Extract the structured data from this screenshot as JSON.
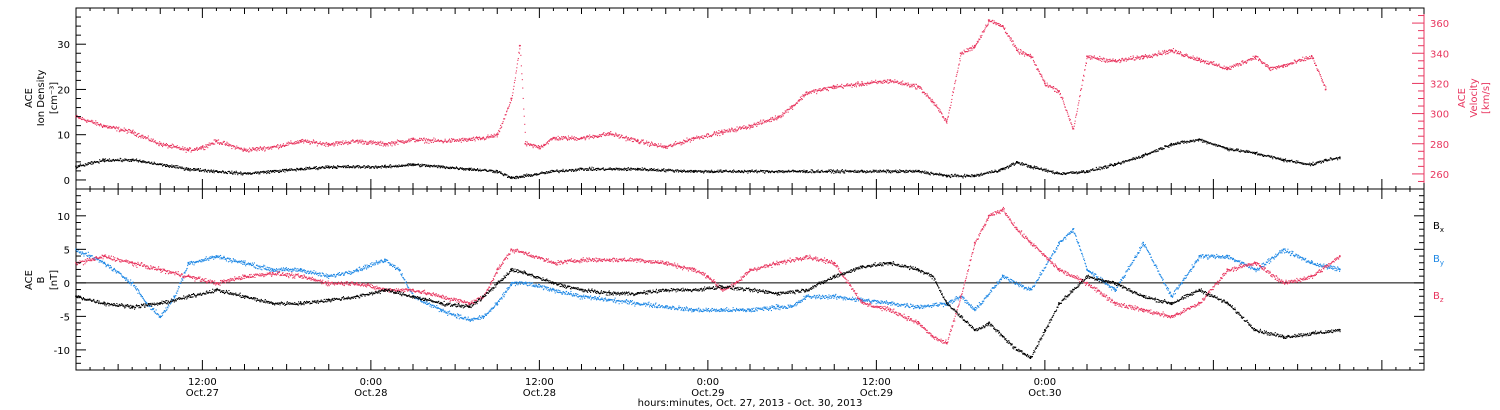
{
  "chart_data": [
    {
      "type": "scatter",
      "panel": "top",
      "ylabel_left": [
        "ACE",
        "Ion Density",
        "[cm⁻³]"
      ],
      "ylabel_right": [
        "ACE",
        "Velocity",
        "[km/s]"
      ],
      "x_range_hours": [
        0,
        96
      ],
      "ylim_left": [
        -2,
        38
      ],
      "yticks_left": [
        0,
        10,
        20,
        30
      ],
      "ylim_right": [
        250,
        370
      ],
      "yticks_right": [
        260,
        280,
        300,
        320,
        340,
        360
      ],
      "series": [
        {
          "axis": "left",
          "color": "#000000",
          "points": [
            [
              0,
              3.0
            ],
            [
              2,
              4.5
            ],
            [
              4,
              4.5
            ],
            [
              6,
              3.5
            ],
            [
              8,
              2.5
            ],
            [
              10,
              2.0
            ],
            [
              12,
              1.5
            ],
            [
              14,
              2.0
            ],
            [
              16,
              2.5
            ],
            [
              18,
              3.0
            ],
            [
              20,
              3.0
            ],
            [
              22,
              3.0
            ],
            [
              24,
              3.5
            ],
            [
              26,
              3.0
            ],
            [
              28,
              2.5
            ],
            [
              30,
              2.0
            ],
            [
              31,
              0.5
            ],
            [
              32,
              1.0
            ],
            [
              34,
              2.0
            ],
            [
              36,
              2.5
            ],
            [
              40,
              2.5
            ],
            [
              44,
              2.0
            ],
            [
              48,
              2.0
            ],
            [
              52,
              2.0
            ],
            [
              56,
              2.0
            ],
            [
              60,
              2.0
            ],
            [
              62,
              1.0
            ],
            [
              64,
              1.0
            ],
            [
              66,
              2.5
            ],
            [
              67,
              4.0
            ],
            [
              68,
              3.0
            ],
            [
              70,
              1.5
            ],
            [
              72,
              2.0
            ],
            [
              74,
              3.5
            ],
            [
              76,
              5.5
            ],
            [
              78,
              8.0
            ],
            [
              80,
              9.0
            ],
            [
              82,
              7.0
            ],
            [
              84,
              6.0
            ],
            [
              86,
              4.5
            ],
            [
              88,
              3.5
            ],
            [
              89,
              4.5
            ],
            [
              90,
              5.0
            ]
          ]
        },
        {
          "axis": "right",
          "color": "#e8365f",
          "points": [
            [
              0,
              298
            ],
            [
              2,
              292
            ],
            [
              4,
              288
            ],
            [
              6,
              280
            ],
            [
              8,
              276
            ],
            [
              9,
              278
            ],
            [
              10,
              282
            ],
            [
              12,
              276
            ],
            [
              14,
              278
            ],
            [
              16,
              282
            ],
            [
              18,
              280
            ],
            [
              20,
              282
            ],
            [
              22,
              280
            ],
            [
              24,
              283
            ],
            [
              26,
              282
            ],
            [
              28,
              283
            ],
            [
              29,
              284
            ],
            [
              30,
              286
            ],
            [
              31,
              310
            ],
            [
              31.6,
              345
            ],
            [
              32,
              280
            ],
            [
              33,
              278
            ],
            [
              34,
              284
            ],
            [
              36,
              284
            ],
            [
              38,
              287
            ],
            [
              40,
              282
            ],
            [
              42,
              278
            ],
            [
              44,
              284
            ],
            [
              46,
              288
            ],
            [
              48,
              292
            ],
            [
              50,
              298
            ],
            [
              51,
              305
            ],
            [
              52,
              314
            ],
            [
              54,
              318
            ],
            [
              56,
              320
            ],
            [
              58,
              322
            ],
            [
              60,
              318
            ],
            [
              61,
              308
            ],
            [
              62,
              295
            ],
            [
              63,
              340
            ],
            [
              64,
              345
            ],
            [
              65,
              362
            ],
            [
              66,
              358
            ],
            [
              67,
              342
            ],
            [
              68,
              338
            ],
            [
              69,
              320
            ],
            [
              70,
              315
            ],
            [
              71,
              290
            ],
            [
              72,
              338
            ],
            [
              74,
              335
            ],
            [
              76,
              338
            ],
            [
              78,
              342
            ],
            [
              80,
              336
            ],
            [
              82,
              330
            ],
            [
              84,
              338
            ],
            [
              85,
              330
            ],
            [
              86,
              332
            ],
            [
              88,
              338
            ],
            [
              89,
              316
            ]
          ]
        }
      ]
    },
    {
      "type": "scatter",
      "panel": "bottom",
      "ylabel_left": [
        "ACE",
        "B",
        "[nT]"
      ],
      "x_range_hours": [
        0,
        96
      ],
      "ylim": [
        -13,
        14
      ],
      "yticks": [
        -10,
        -5,
        0,
        5,
        10
      ],
      "zero_line": true,
      "xtick_labels": [
        {
          "t": 9,
          "time": "12:00",
          "date": "Oct.27"
        },
        {
          "t": 21,
          "time": "0:00",
          "date": "Oct.28"
        },
        {
          "t": 33,
          "time": "12:00",
          "date": "Oct.28"
        },
        {
          "t": 45,
          "time": "0:00",
          "date": "Oct.29"
        },
        {
          "t": 57,
          "time": "12:00",
          "date": "Oct.29"
        },
        {
          "t": 69,
          "time": "0:00",
          "date": "Oct.30"
        }
      ],
      "xlabel": "hours:minutes, Oct. 27, 2013 - Oct. 30, 2013",
      "series": [
        {
          "name": "Bx",
          "legend_sym": "B",
          "legend_sub": "x",
          "color": "#000000",
          "points": [
            [
              0,
              -2
            ],
            [
              2,
              -3
            ],
            [
              4,
              -3.5
            ],
            [
              6,
              -3
            ],
            [
              8,
              -2
            ],
            [
              10,
              -1
            ],
            [
              12,
              -2
            ],
            [
              14,
              -3
            ],
            [
              16,
              -3
            ],
            [
              18,
              -2.5
            ],
            [
              20,
              -2
            ],
            [
              22,
              -1
            ],
            [
              24,
              -2
            ],
            [
              26,
              -3
            ],
            [
              28,
              -3.5
            ],
            [
              29,
              -2
            ],
            [
              30,
              0
            ],
            [
              31,
              2
            ],
            [
              32,
              1.5
            ],
            [
              34,
              0
            ],
            [
              36,
              -1
            ],
            [
              38,
              -1.5
            ],
            [
              40,
              -1.5
            ],
            [
              42,
              -1
            ],
            [
              44,
              -1
            ],
            [
              46,
              -0.5
            ],
            [
              48,
              -1
            ],
            [
              50,
              -1.5
            ],
            [
              52,
              -1
            ],
            [
              54,
              1
            ],
            [
              56,
              2.5
            ],
            [
              58,
              3
            ],
            [
              60,
              2
            ],
            [
              61,
              1
            ],
            [
              62,
              -3
            ],
            [
              63,
              -5
            ],
            [
              64,
              -7
            ],
            [
              65,
              -6
            ],
            [
              66,
              -8
            ],
            [
              67,
              -10
            ],
            [
              68,
              -11
            ],
            [
              69,
              -7
            ],
            [
              70,
              -3
            ],
            [
              71,
              -1
            ],
            [
              72,
              1
            ],
            [
              74,
              0
            ],
            [
              76,
              -2
            ],
            [
              78,
              -3
            ],
            [
              80,
              -1
            ],
            [
              82,
              -3
            ],
            [
              84,
              -7
            ],
            [
              86,
              -8
            ],
            [
              88,
              -7.5
            ],
            [
              90,
              -7
            ]
          ]
        },
        {
          "name": "By",
          "legend_sym": "B",
          "legend_sub": "y",
          "color": "#1e88e5",
          "points": [
            [
              0,
              5
            ],
            [
              2,
              3
            ],
            [
              4,
              0
            ],
            [
              5,
              -3
            ],
            [
              6,
              -5
            ],
            [
              7,
              -2
            ],
            [
              8,
              3
            ],
            [
              10,
              4
            ],
            [
              12,
              3
            ],
            [
              14,
              2
            ],
            [
              16,
              2
            ],
            [
              18,
              1
            ],
            [
              20,
              2
            ],
            [
              22,
              3.5
            ],
            [
              23,
              2
            ],
            [
              24,
              -2
            ],
            [
              26,
              -4
            ],
            [
              28,
              -5.5
            ],
            [
              29,
              -5
            ],
            [
              30,
              -3
            ],
            [
              31,
              0
            ],
            [
              32,
              0
            ],
            [
              34,
              -1
            ],
            [
              36,
              -2
            ],
            [
              38,
              -2.5
            ],
            [
              40,
              -3
            ],
            [
              42,
              -3.5
            ],
            [
              44,
              -4
            ],
            [
              46,
              -4
            ],
            [
              48,
              -4
            ],
            [
              50,
              -3.5
            ],
            [
              51,
              -3.5
            ],
            [
              52,
              -2
            ],
            [
              54,
              -2
            ],
            [
              56,
              -2.5
            ],
            [
              58,
              -3
            ],
            [
              60,
              -3.5
            ],
            [
              62,
              -3
            ],
            [
              63,
              -2
            ],
            [
              64,
              -4
            ],
            [
              66,
              1
            ],
            [
              68,
              -1
            ],
            [
              70,
              6
            ],
            [
              71,
              8
            ],
            [
              72,
              2
            ],
            [
              74,
              -1
            ],
            [
              76,
              6
            ],
            [
              78,
              -2
            ],
            [
              80,
              4
            ],
            [
              82,
              4
            ],
            [
              84,
              2
            ],
            [
              86,
              5
            ],
            [
              88,
              3
            ],
            [
              90,
              2
            ]
          ]
        },
        {
          "name": "Bz",
          "legend_sym": "B",
          "legend_sub": "z",
          "color": "#e8365f",
          "points": [
            [
              0,
              3
            ],
            [
              2,
              4
            ],
            [
              4,
              3
            ],
            [
              6,
              2
            ],
            [
              8,
              1
            ],
            [
              10,
              0
            ],
            [
              12,
              1
            ],
            [
              14,
              1.5
            ],
            [
              16,
              1
            ],
            [
              18,
              0
            ],
            [
              20,
              0
            ],
            [
              22,
              -1
            ],
            [
              24,
              -1
            ],
            [
              26,
              -2
            ],
            [
              28,
              -3
            ],
            [
              29,
              -2
            ],
            [
              30,
              2
            ],
            [
              31,
              5
            ],
            [
              32,
              4.5
            ],
            [
              34,
              3
            ],
            [
              36,
              3.5
            ],
            [
              38,
              3.5
            ],
            [
              40,
              3.5
            ],
            [
              42,
              3
            ],
            [
              44,
              2
            ],
            [
              45,
              1
            ],
            [
              46,
              -1
            ],
            [
              47,
              0
            ],
            [
              48,
              2
            ],
            [
              50,
              3
            ],
            [
              52,
              4
            ],
            [
              54,
              3
            ],
            [
              56,
              -3
            ],
            [
              58,
              -4
            ],
            [
              60,
              -6
            ],
            [
              61,
              -8
            ],
            [
              62,
              -9
            ],
            [
              63,
              -2
            ],
            [
              64,
              6
            ],
            [
              65,
              10
            ],
            [
              66,
              11
            ],
            [
              67,
              8
            ],
            [
              68,
              6
            ],
            [
              69,
              4
            ],
            [
              70,
              2
            ],
            [
              72,
              0
            ],
            [
              74,
              -3
            ],
            [
              76,
              -4
            ],
            [
              78,
              -5
            ],
            [
              80,
              -3
            ],
            [
              82,
              2
            ],
            [
              84,
              3
            ],
            [
              86,
              0
            ],
            [
              88,
              1
            ],
            [
              90,
              4
            ]
          ]
        }
      ]
    }
  ]
}
